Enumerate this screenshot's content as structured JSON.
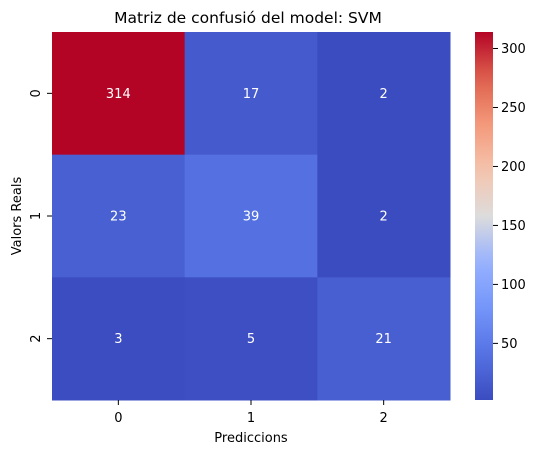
{
  "chart_data": {
    "type": "heatmap",
    "title": "Matriz de confusió del model: SVM",
    "xlabel": "Prediccions",
    "ylabel": "Valors Reals",
    "x_categories": [
      "0",
      "1",
      "2"
    ],
    "y_categories": [
      "0",
      "1",
      "2"
    ],
    "values": [
      [
        314,
        17,
        2
      ],
      [
        23,
        39,
        2
      ],
      [
        3,
        5,
        21
      ]
    ],
    "colormap": "coolwarm",
    "color_range": [
      2,
      314
    ],
    "colorbar_ticks": [
      "50",
      "100",
      "150",
      "200",
      "250",
      "300"
    ],
    "annotations": true,
    "grid": false
  }
}
